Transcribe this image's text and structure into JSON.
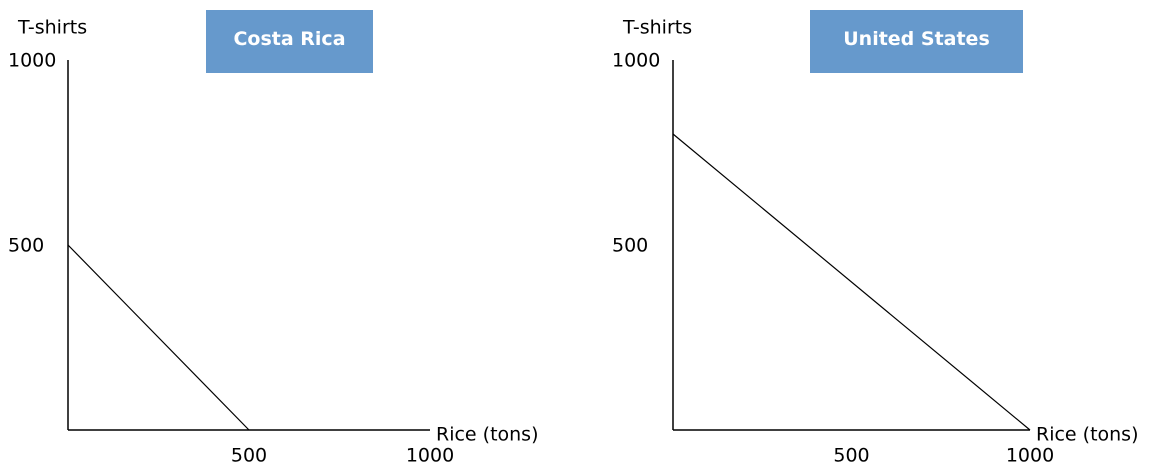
{
  "chart_data": [
    {
      "type": "line",
      "title": "Costa Rica",
      "y_label": "T-shirts",
      "x_label": "Rice (tons)",
      "x": [
        0,
        500
      ],
      "series": [
        {
          "color": "#000000",
          "values": [
            500,
            0
          ]
        }
      ],
      "xlim": [
        0,
        1000
      ],
      "ylim": [
        0,
        1000
      ],
      "xticks": [
        500,
        1000
      ],
      "yticks": [
        500,
        1000
      ],
      "grid": false
    },
    {
      "type": "line",
      "title": "United States",
      "y_label": "T-shirts",
      "x_label": "Rice (tons)",
      "x": [
        0,
        1000
      ],
      "series": [
        {
          "color": "#000000",
          "values": [
            800,
            0
          ]
        }
      ],
      "xlim": [
        0,
        1000
      ],
      "ylim": [
        0,
        1000
      ],
      "xticks": [
        500,
        1000
      ],
      "yticks": [
        500,
        1000
      ],
      "grid": false
    }
  ]
}
